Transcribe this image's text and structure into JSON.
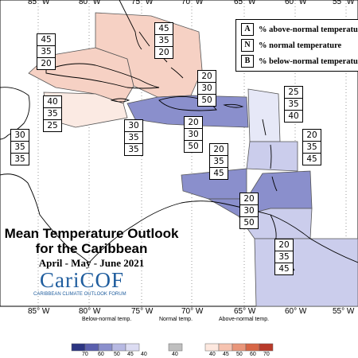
{
  "title_line1": "Mean Temperature Outlook",
  "title_line2": "for the Caribbean",
  "period": "April - May - June 2021",
  "logo": {
    "name": "CariCOF",
    "subtitle": "CARIBBEAN CLIMATE OUTLOOK FORUM"
  },
  "legend": {
    "a_key": "A",
    "a_text": "% above-normal temperature",
    "n_key": "N",
    "n_text": "% normal temperature",
    "b_key": "B",
    "b_text": "% below-normal temperature"
  },
  "longitudes_top": [
    "85° W",
    "80° W",
    "75° W",
    "70° W",
    "65° W",
    "60° W",
    "55° W"
  ],
  "longitudes_bottom": [
    "85° W",
    "80° W",
    "75° W",
    "70° W",
    "65° W",
    "60° W",
    "55° W"
  ],
  "regions": [
    {
      "id": "cuba-west",
      "a": "45",
      "n": "35",
      "b": "20",
      "fill": "#f6d1c4"
    },
    {
      "id": "bahamas",
      "a": "45",
      "n": "35",
      "b": "20",
      "fill": "#f6d1c4"
    },
    {
      "id": "jamaica-caymans",
      "a": "40",
      "n": "35",
      "b": "25",
      "fill": "#fbeae3"
    },
    {
      "id": "central-america",
      "a": "30",
      "n": "35",
      "b": "35",
      "fill": "#ffffff"
    },
    {
      "id": "haiti-dr",
      "a": "20",
      "n": "30",
      "b": "50",
      "fill": "#8a8fcc"
    },
    {
      "id": "caribbean-sea-center",
      "a": "30",
      "n": "35",
      "b": "35",
      "fill": "#ffffff"
    },
    {
      "id": "greater-antilles-south",
      "a": "20",
      "n": "30",
      "b": "50",
      "fill": "#8a8fcc"
    },
    {
      "id": "leeward-north",
      "a": "25",
      "n": "35",
      "b": "40",
      "fill": "#e6e8f7"
    },
    {
      "id": "leeward-south",
      "a": "20",
      "n": "35",
      "b": "45",
      "fill": "#cbcdec"
    },
    {
      "id": "abc-islands",
      "a": "20",
      "n": "35",
      "b": "45",
      "fill": "#cbcdec"
    },
    {
      "id": "windward-trinidad",
      "a": "20",
      "n": "30",
      "b": "50",
      "fill": "#8a8fcc"
    },
    {
      "id": "guianas",
      "a": "20",
      "n": "35",
      "b": "45",
      "fill": "#cbcdec"
    }
  ],
  "colorbar": {
    "below_title": "Below-normal temp.",
    "normal_title": "Normal temp.",
    "above_title": "Above-normal temp.",
    "below_colors": [
      "#2c3582",
      "#5a5fae",
      "#8a8fcc",
      "#b7b9e2",
      "#dcdcf2"
    ],
    "below_ticks": [
      "70",
      "60",
      "50",
      "45",
      "40"
    ],
    "normal_color": "#bfbfbf",
    "normal_tick": "40",
    "above_colors": [
      "#fde8df",
      "#f6c3b0",
      "#e9967a",
      "#d76646",
      "#b83a2a"
    ],
    "above_ticks": [
      "40",
      "45",
      "50",
      "60",
      "70"
    ]
  }
}
